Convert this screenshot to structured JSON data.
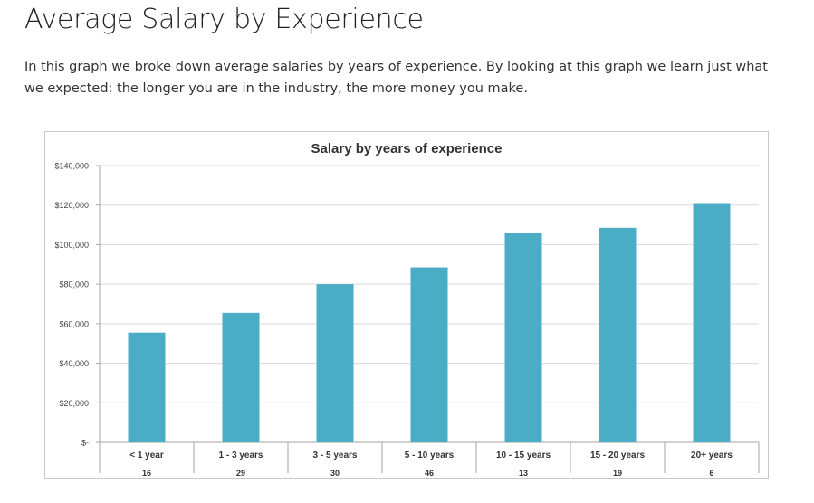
{
  "page": {
    "title": "Average Salary by Experience",
    "intro": "In this graph we broke down average salaries by years of experience. By looking at this graph we learn just what we expected: the longer you are in the industry, the more money you make."
  },
  "chart_data": {
    "type": "bar",
    "title": "Salary by years of experience",
    "xlabel": "",
    "ylabel": "",
    "categories": [
      "< 1 year",
      "1 - 3 years",
      "3 - 5 years",
      "5 - 10 years",
      "10 - 15 years",
      "15 - 20 years",
      "20+ years"
    ],
    "table_row": [
      "16",
      "29",
      "30",
      "46",
      "13",
      "19",
      "6"
    ],
    "values": [
      55500,
      65500,
      80000,
      88500,
      106000,
      108500,
      121000
    ],
    "ylim": [
      0,
      140000
    ],
    "yticks": [
      0,
      20000,
      40000,
      60000,
      80000,
      100000,
      120000,
      140000
    ],
    "ytick_labels": [
      "$-",
      "$20,000",
      "$40,000",
      "$60,000",
      "$80,000",
      "$100,000",
      "$120,000",
      "$140,000"
    ],
    "grid": true,
    "bar_color": "#4bacc6",
    "gridline_color": "#d9d9d9"
  }
}
